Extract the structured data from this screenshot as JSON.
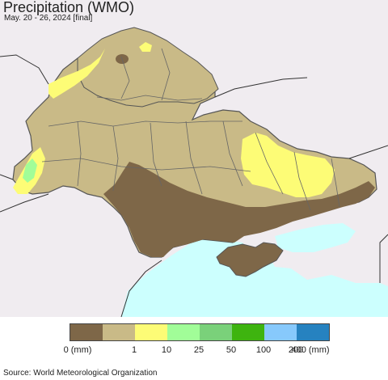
{
  "header": {
    "title": "Precipitation (WMO)",
    "subtitle": "May. 20 - 26, 2024 [final]"
  },
  "legend": {
    "colors": [
      "#7e6748",
      "#c9ba87",
      "#fdfc76",
      "#a1fd98",
      "#7ad17a",
      "#3eb40f",
      "#87c9fc",
      "#2682c0"
    ],
    "labels": [
      "0 (mm)",
      "1",
      "10",
      "25",
      "50",
      "100",
      "200",
      "400 (mm)"
    ]
  },
  "source": "Source: World Meteorological Organization",
  "map": {
    "background_color": "#f0ecf0",
    "sea_color": "#ccfffe"
  }
}
